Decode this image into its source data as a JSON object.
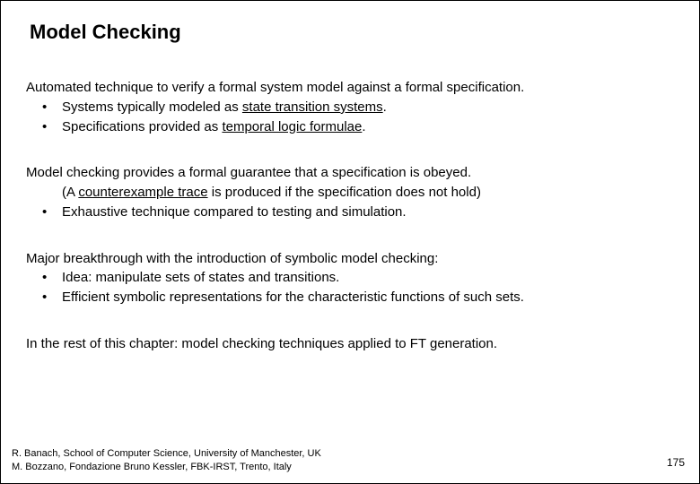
{
  "title": "Model Checking",
  "block1": {
    "lead": "Automated technique to verify a formal system model against a formal specification.",
    "b1a": "Systems typically modeled as ",
    "b1b": "state transition systems",
    "b1c": ".",
    "b2a": "Specifications provided as ",
    "b2b": "temporal logic formulae",
    "b2c": "."
  },
  "block2": {
    "lead": "Model checking provides a formal guarantee that a specification is obeyed.",
    "s1a": "(A ",
    "s1b": "counterexample trace",
    "s1c": " is produced if the specification does not hold)",
    "b1": "Exhaustive technique compared to testing and simulation."
  },
  "block3": {
    "lead": "Major breakthrough with the introduction of symbolic model checking:",
    "b1": "Idea: manipulate sets of states and transitions.",
    "b2": "Efficient symbolic representations for the characteristic functions of such sets."
  },
  "block4": {
    "line": "In the rest of this chapter: model checking techniques applied to FT generation."
  },
  "footer": {
    "l1": "R. Banach, School of  Computer Science, University of Manchester, UK",
    "l2": "M. Bozzano, Fondazione Bruno Kessler, FBK-IRST, Trento, Italy"
  },
  "page": "175"
}
